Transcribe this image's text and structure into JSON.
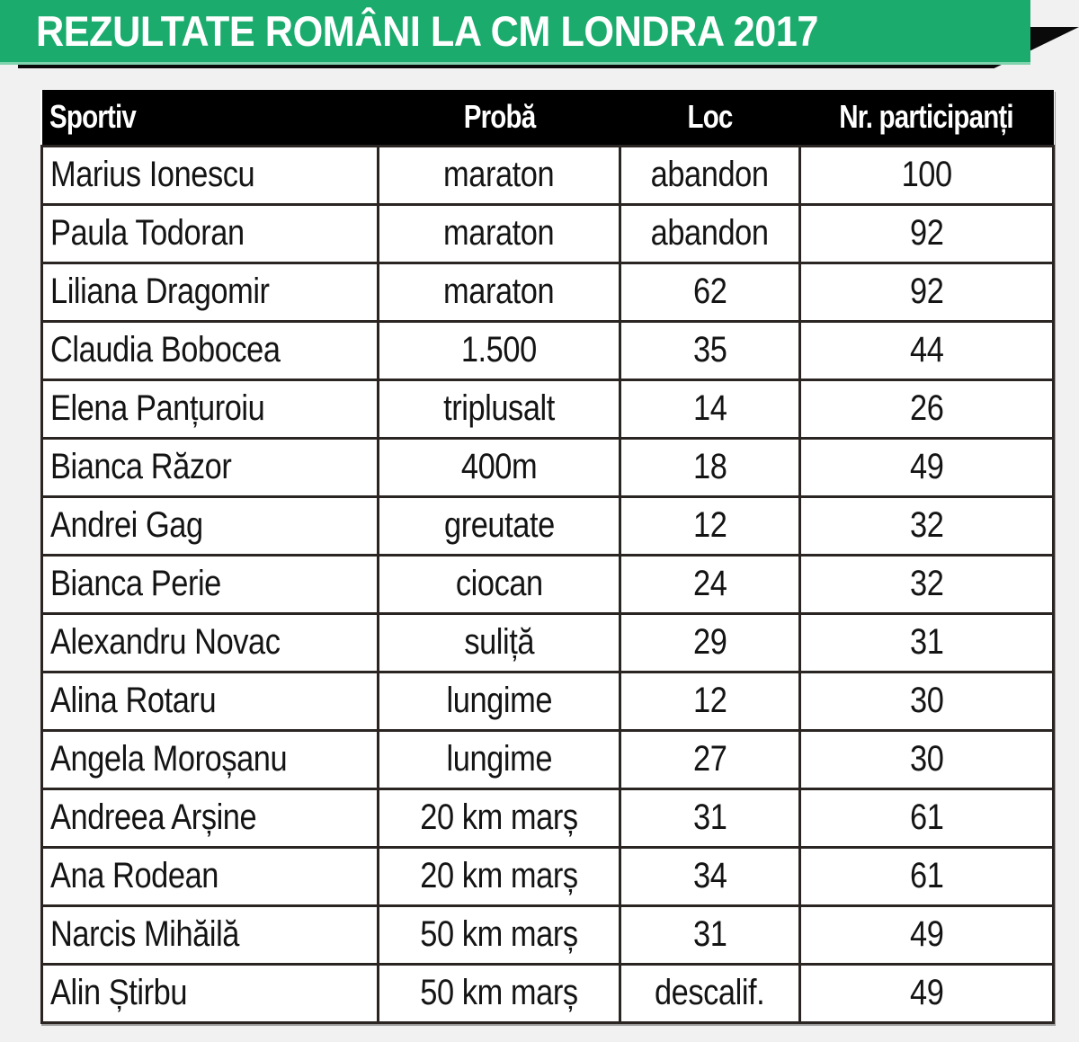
{
  "title": "REZULTATE ROMÂNI LA CM LONDRA 2017",
  "colors": {
    "banner_green": "#1aab6d",
    "header_black": "#000000",
    "border": "#2a2522",
    "background": "#f1f1f1"
  },
  "table": {
    "headers": {
      "name": "Sportiv",
      "event": "Probă",
      "place": "Loc",
      "count": "Nr. participanți"
    },
    "rows": [
      {
        "name": "Marius Ionescu",
        "event": "maraton",
        "place": "abandon",
        "count": "100"
      },
      {
        "name": "Paula Todoran",
        "event": "maraton",
        "place": "abandon",
        "count": "92"
      },
      {
        "name": "Liliana Dragomir",
        "event": "maraton",
        "place": "62",
        "count": "92"
      },
      {
        "name": "Claudia Bobocea",
        "event": "1.500",
        "place": "35",
        "count": "44"
      },
      {
        "name": "Elena Panțuroiu",
        "event": "triplusalt",
        "place": "14",
        "count": "26"
      },
      {
        "name": "Bianca Răzor",
        "event": "400m",
        "place": "18",
        "count": "49"
      },
      {
        "name": "Andrei Gag",
        "event": "greutate",
        "place": "12",
        "count": "32"
      },
      {
        "name": "Bianca Perie",
        "event": "ciocan",
        "place": "24",
        "count": "32"
      },
      {
        "name": "Alexandru Novac",
        "event": "suliță",
        "place": "29",
        "count": "31"
      },
      {
        "name": "Alina Rotaru",
        "event": "lungime",
        "place": "12",
        "count": "30"
      },
      {
        "name": "Angela Moroșanu",
        "event": "lungime",
        "place": "27",
        "count": "30"
      },
      {
        "name": "Andreea Arșine",
        "event": "20 km marș",
        "place": "31",
        "count": "61"
      },
      {
        "name": "Ana Rodean",
        "event": "20 km marș",
        "place": "34",
        "count": "61"
      },
      {
        "name": "Narcis Mihăilă",
        "event": "50 km marș",
        "place": "31",
        "count": "49"
      },
      {
        "name": "Alin Știrbu",
        "event": "50 km marș",
        "place": "descalif.",
        "count": "49"
      }
    ]
  }
}
